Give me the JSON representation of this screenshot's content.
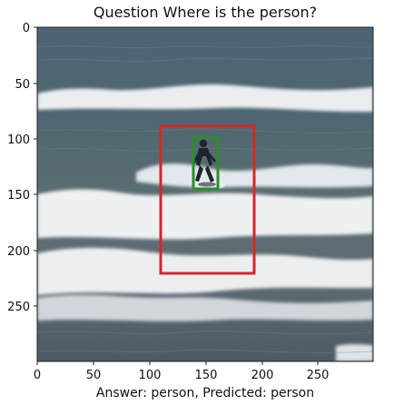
{
  "figure": {
    "title": "Question Where is the person?",
    "caption": "Answer: person, Predicted: person"
  },
  "axes": {
    "x_ticks": [
      "0",
      "50",
      "100",
      "150",
      "200",
      "250"
    ],
    "y_ticks": [
      "0",
      "50",
      "100",
      "150",
      "200",
      "250"
    ]
  },
  "boxes": [
    {
      "name": "ground-truth",
      "color": "#2a8f2a"
    },
    {
      "name": "predicted",
      "color": "#d62728"
    }
  ]
}
